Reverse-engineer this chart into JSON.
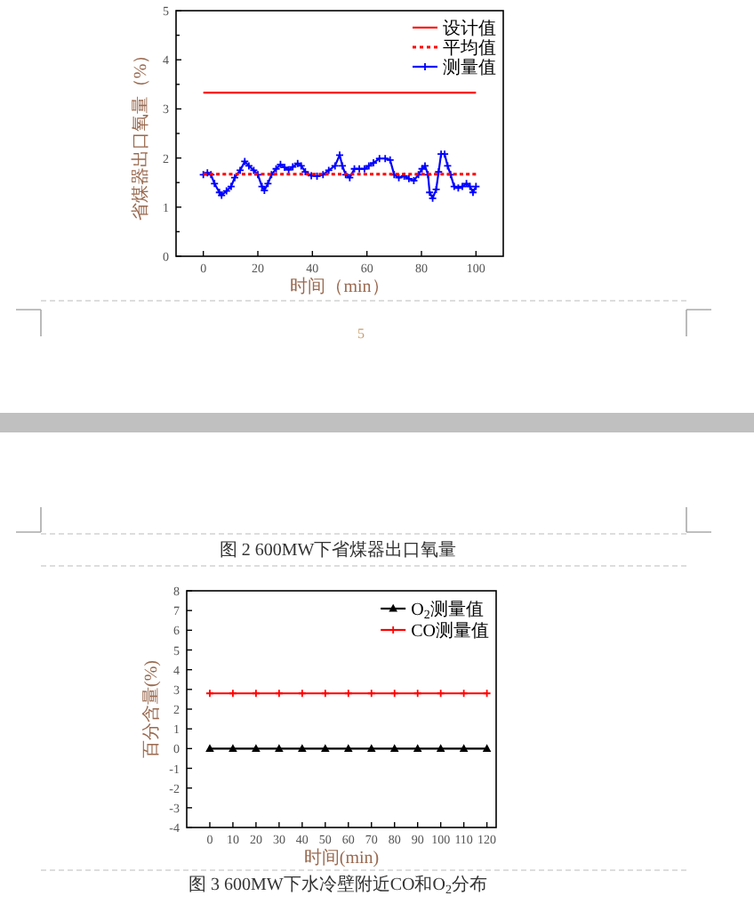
{
  "chart_data": [
    {
      "type": "line",
      "xlabel": "时间（min）",
      "ylabel": "省煤器出口氧量（%）",
      "xlim": [
        -10,
        110
      ],
      "ylim": [
        0,
        5
      ],
      "xticks": [
        0,
        20,
        40,
        60,
        80,
        100
      ],
      "yticks": [
        0,
        {
          "value": 0.5,
          "label": null
        },
        1,
        {
          "value": 1.5,
          "label": null
        },
        2,
        {
          "value": 2.5,
          "label": null
        },
        3,
        {
          "value": 3.5,
          "label": null
        },
        4,
        {
          "value": 4.5,
          "label": null
        },
        5
      ],
      "legend": "top right",
      "annotations": [
        "5",
        "图 2  600MW下省煤器出口氧量"
      ],
      "series": [
        {
          "name": "设计值",
          "color": "#ff0000",
          "line_style": "solid",
          "marker": "none",
          "x": [
            0,
            100
          ],
          "values": [
            3.33,
            3.33
          ]
        },
        {
          "name": "平均值",
          "color": "#ff0000",
          "line_style": "dotted",
          "marker": "none",
          "x": [
            0,
            100
          ],
          "values": [
            1.67,
            1.67
          ]
        },
        {
          "name": "测量值",
          "color": "#0000ff",
          "line_style": "solid",
          "marker": "cross",
          "x": [
            0,
            1.5,
            2.8,
            4.1,
            5.9,
            6.7,
            8.5,
            10.2,
            11.5,
            13.5,
            15.2,
            16.7,
            18.5,
            20,
            21.5,
            22.4,
            23.7,
            25,
            26.7,
            28.3,
            29.8,
            31.3,
            32.8,
            34.6,
            35.9,
            37.4,
            39.6,
            41.7,
            43.9,
            46,
            48.3,
            50,
            51,
            52.2,
            53.7,
            55.4,
            57.2,
            59.1,
            60.7,
            62.4,
            64.6,
            66.7,
            68.5,
            70,
            71.7,
            73.7,
            75.4,
            77.2,
            78.9,
            80.2,
            81.3,
            82.4,
            83,
            84.1,
            85.4,
            86.3,
            87.2,
            88.5,
            89.6,
            90.7,
            92,
            93.5,
            95,
            96.5,
            97.8,
            98.9,
            100
          ],
          "values": [
            1.66,
            1.7,
            1.66,
            1.48,
            1.3,
            1.24,
            1.33,
            1.42,
            1.6,
            1.75,
            1.93,
            1.84,
            1.75,
            1.66,
            1.42,
            1.34,
            1.48,
            1.66,
            1.78,
            1.87,
            1.81,
            1.76,
            1.82,
            1.89,
            1.84,
            1.72,
            1.64,
            1.63,
            1.66,
            1.75,
            1.84,
            2.06,
            1.84,
            1.66,
            1.6,
            1.78,
            1.78,
            1.78,
            1.84,
            1.9,
            1.99,
            1.99,
            1.96,
            1.66,
            1.6,
            1.63,
            1.58,
            1.54,
            1.66,
            1.78,
            1.84,
            1.66,
            1.3,
            1.18,
            1.36,
            1.72,
            2.08,
            2.08,
            1.84,
            1.66,
            1.42,
            1.39,
            1.42,
            1.48,
            1.42,
            1.3,
            1.42
          ]
        }
      ]
    },
    {
      "type": "line",
      "xlabel": "时间(min)",
      "ylabel": "百分含量(%)",
      "x": [
        0,
        10,
        20,
        30,
        40,
        50,
        60,
        70,
        80,
        90,
        100,
        110,
        120
      ],
      "xlim": [
        -10,
        124
      ],
      "ylim": [
        -4,
        8
      ],
      "xticks": [
        0,
        10,
        20,
        30,
        40,
        50,
        60,
        70,
        80,
        90,
        100,
        110,
        120
      ],
      "yticks": [
        -4,
        -3,
        -2,
        -1,
        0,
        1,
        2,
        3,
        4,
        5,
        6,
        7,
        8
      ],
      "legend": "top right",
      "annotations": [
        "图 3  600MW下水冷壁附近CO和O$_{2}$分布"
      ],
      "series": [
        {
          "name": "O$_{2}$测量值",
          "color": "#000000",
          "line_style": "solid",
          "marker": "triangle",
          "values": [
            0,
            0,
            0,
            0,
            0,
            0,
            0,
            0,
            0,
            0,
            0,
            0,
            0
          ]
        },
        {
          "name": "CO测量值",
          "color": "#ff0000",
          "line_style": "solid",
          "marker": "cross",
          "values": [
            2.8,
            2.8,
            2.8,
            2.8,
            2.8,
            2.8,
            2.8,
            2.8,
            2.8,
            2.8,
            2.8,
            2.8,
            2.8
          ]
        }
      ]
    }
  ]
}
